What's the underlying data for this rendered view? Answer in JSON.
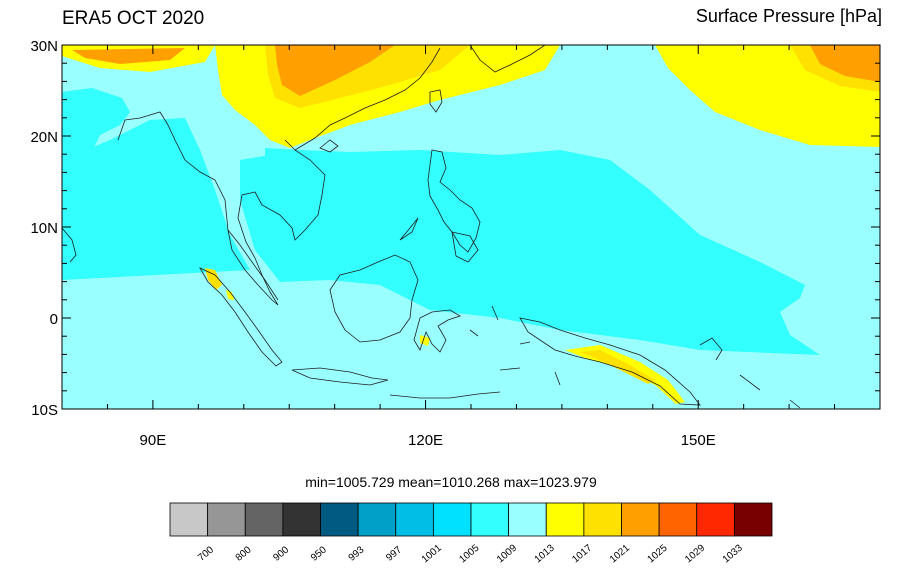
{
  "title_left": "ERA5 OCT 2020",
  "title_right": "Surface Pressure [hPa]",
  "stats": "min=1005.729  mean=1010.268  max=1023.979",
  "lat_labels": [
    "30N",
    "20N",
    "10N",
    "0",
    "10S"
  ],
  "lon_labels": [
    "90E",
    "120E",
    "150E"
  ],
  "colorbar": {
    "colors": [
      "#c8c8c8",
      "#969696",
      "#646464",
      "#333333",
      "#005a82",
      "#00a0c8",
      "#00bee6",
      "#00e1ff",
      "#33ffff",
      "#99ffff",
      "#ffff00",
      "#ffe100",
      "#ffa000",
      "#ff6400",
      "#ff2800",
      "#780000"
    ],
    "labels": [
      "700",
      "800",
      "900",
      "950",
      "993",
      "997",
      "1001",
      "1005",
      "1009",
      "1013",
      "1017",
      "1021",
      "1025",
      "1029",
      "1033"
    ]
  },
  "palette": {
    "ocean_light": "#99ffff",
    "ocean_mid": "#33ffff",
    "ocean_high": "#00e1ff",
    "yellow": "#ffff00",
    "gold": "#ffe100",
    "orange": "#ffa000"
  }
}
